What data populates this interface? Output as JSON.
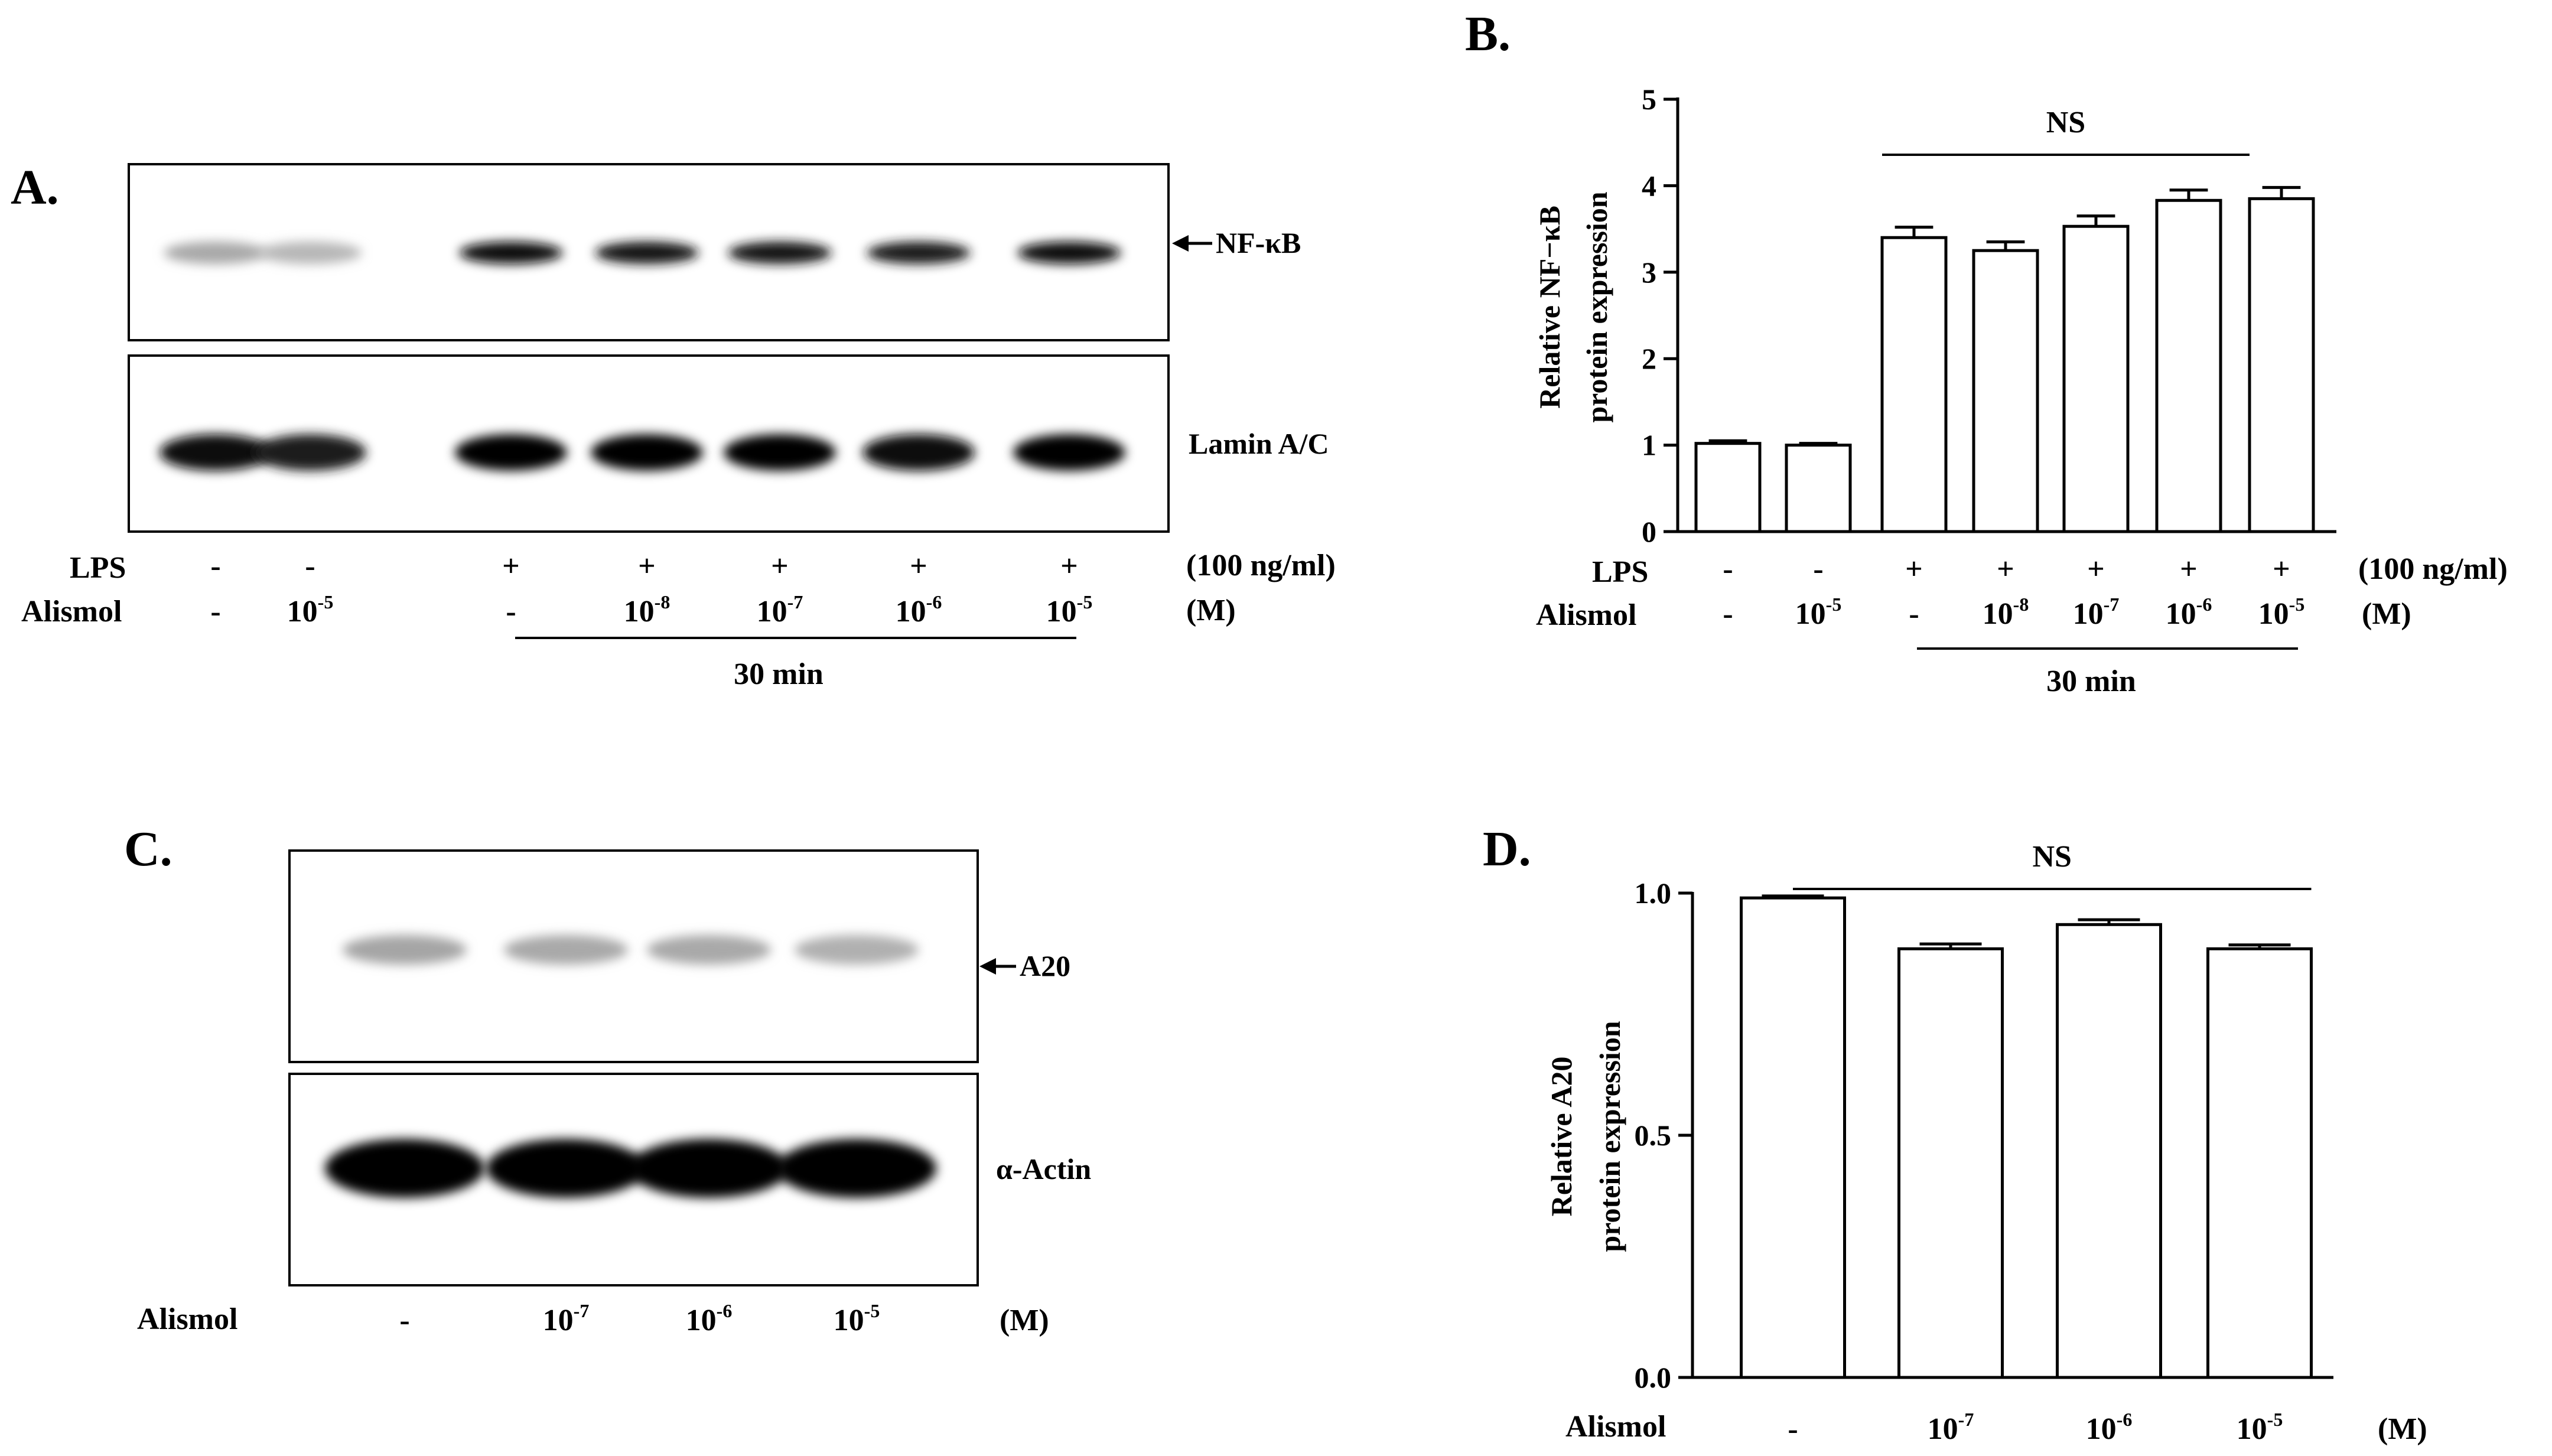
{
  "figure": {
    "panels": {
      "A": {
        "label": "A.",
        "blots": {
          "top": {
            "name": "NF-κB",
            "lanes": [
              0.28,
              0.22,
              0.95,
              0.9,
              0.92,
              0.88,
              0.95
            ]
          },
          "bottom": {
            "name": "Lamin A/C",
            "lanes": [
              0.95,
              0.88,
              1,
              1,
              1,
              0.95,
              0.98
            ]
          }
        },
        "rows": [
          {
            "label": "LPS",
            "cells": [
              "-",
              "-",
              "+",
              "+",
              "+",
              "+",
              "+"
            ],
            "unit": "(100 ng/ml)"
          },
          {
            "label": "Alismol",
            "cells": [
              {
                "base": "-",
                "exp": ""
              },
              {
                "base": "10",
                "exp": "-5"
              },
              {
                "base": "-",
                "exp": ""
              },
              {
                "base": "10",
                "exp": "-8"
              },
              {
                "base": "10",
                "exp": "-7"
              },
              {
                "base": "10",
                "exp": "-6"
              },
              {
                "base": "10",
                "exp": "-5"
              }
            ],
            "unit": "(M)"
          }
        ],
        "time": "30 min"
      },
      "C": {
        "label": "C.",
        "blots": {
          "top": {
            "name": "A20",
            "lanes": [
              0.3,
              0.28,
              0.28,
              0.25
            ]
          },
          "bottom": {
            "name": "α-Actin",
            "lanes": [
              1,
              1,
              1,
              1
            ]
          }
        },
        "rows": [
          {
            "label": "Alismol",
            "cells": [
              {
                "base": "-",
                "exp": ""
              },
              {
                "base": "10",
                "exp": "-7"
              },
              {
                "base": "10",
                "exp": "-6"
              },
              {
                "base": "10",
                "exp": "-5"
              }
            ],
            "unit": "(M)"
          }
        ]
      }
    }
  },
  "chart_data": [
    {
      "panel": "B.",
      "type": "bar",
      "categories": [
        "1",
        "2",
        "3",
        "4",
        "5",
        "6",
        "7"
      ],
      "values": [
        1.02,
        1.0,
        3.4,
        3.25,
        3.53,
        3.83,
        3.85
      ],
      "errors": [
        0.03,
        0.02,
        0.12,
        0.1,
        0.12,
        0.12,
        0.13
      ],
      "ylabel": [
        "Relative NF−κB",
        "protein expression"
      ],
      "ylim": [
        0,
        5
      ],
      "yticks": [
        0,
        1,
        2,
        3,
        4,
        5
      ],
      "annotation": {
        "text": "NS",
        "from": 3,
        "to": 7
      },
      "rows": [
        {
          "label": "LPS",
          "cells": [
            "-",
            "-",
            "+",
            "+",
            "+",
            "+",
            "+"
          ],
          "unit": "(100 ng/ml)"
        },
        {
          "label": "Alismol",
          "cells": [
            {
              "base": "-",
              "exp": ""
            },
            {
              "base": "10",
              "exp": "-5"
            },
            {
              "base": "-",
              "exp": ""
            },
            {
              "base": "10",
              "exp": "-8"
            },
            {
              "base": "10",
              "exp": "-7"
            },
            {
              "base": "10",
              "exp": "-6"
            },
            {
              "base": "10",
              "exp": "-5"
            }
          ],
          "unit": "(M)"
        }
      ],
      "time": "30 min"
    },
    {
      "panel": "D.",
      "type": "bar",
      "categories": [
        "1",
        "2",
        "3",
        "4"
      ],
      "values": [
        0.99,
        0.885,
        0.935,
        0.885
      ],
      "errors": [
        0.004,
        0.01,
        0.01,
        0.008
      ],
      "ylabel": [
        "Relative A20",
        "protein expression"
      ],
      "ylim": [
        0,
        1
      ],
      "yticks": [
        "0.0",
        "0.5",
        "1.0"
      ],
      "annotation": {
        "text": "NS",
        "from": 1,
        "to": 4
      },
      "rows": [
        {
          "label": "Alismol",
          "cells": [
            {
              "base": "-",
              "exp": ""
            },
            {
              "base": "10",
              "exp": "-7"
            },
            {
              "base": "10",
              "exp": "-6"
            },
            {
              "base": "10",
              "exp": "-5"
            }
          ],
          "unit": "(M)"
        }
      ]
    }
  ]
}
